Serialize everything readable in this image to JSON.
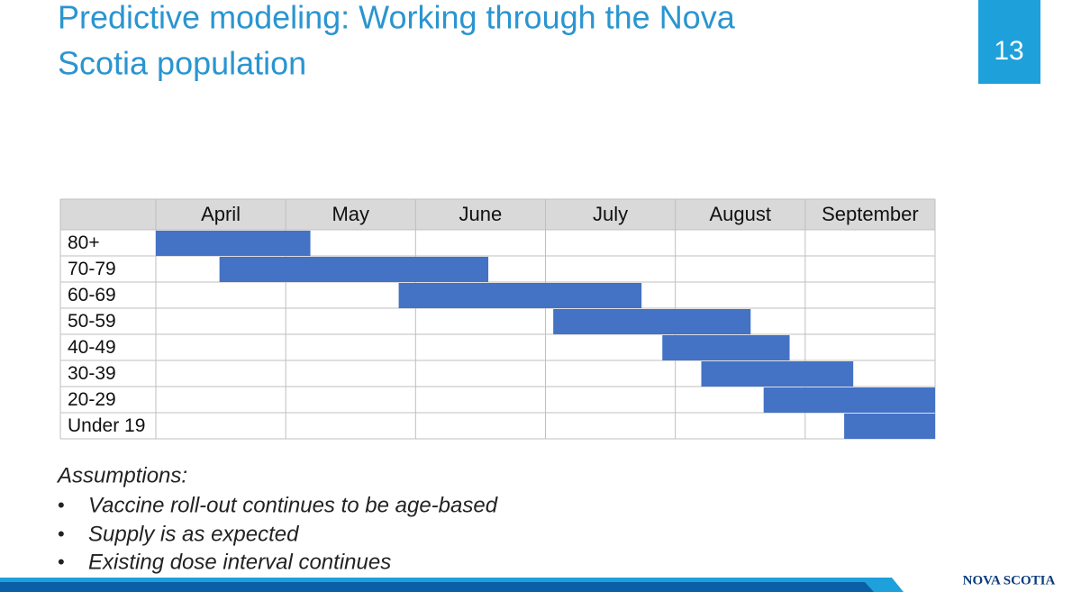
{
  "slide": {
    "title_lines": [
      "Predictive modeling: Working through the Nova",
      "Scotia population"
    ],
    "page_number": "13",
    "notes_heading": "Assumptions:",
    "notes": [
      "Vaccine roll-out continues to be age-based",
      "Supply is as expected",
      "Existing dose interval continues"
    ],
    "logo": "NOVA SCOTIA"
  },
  "chart_data": {
    "type": "gantt",
    "months": [
      "April",
      "May",
      "June",
      "July",
      "August",
      "September"
    ],
    "categories": [
      "80+",
      "70-79",
      "60-69",
      "50-59",
      "40-49",
      "30-39",
      "20-29",
      "Under 19"
    ],
    "starts": [
      0,
      0.49,
      1.87,
      3.06,
      3.9,
      4.2,
      4.68,
      5.3
    ],
    "ends": [
      1.19,
      2.56,
      3.74,
      4.58,
      4.88,
      5.37,
      6,
      6
    ],
    "xlim": [
      0,
      6
    ],
    "color": "#4472c4"
  }
}
